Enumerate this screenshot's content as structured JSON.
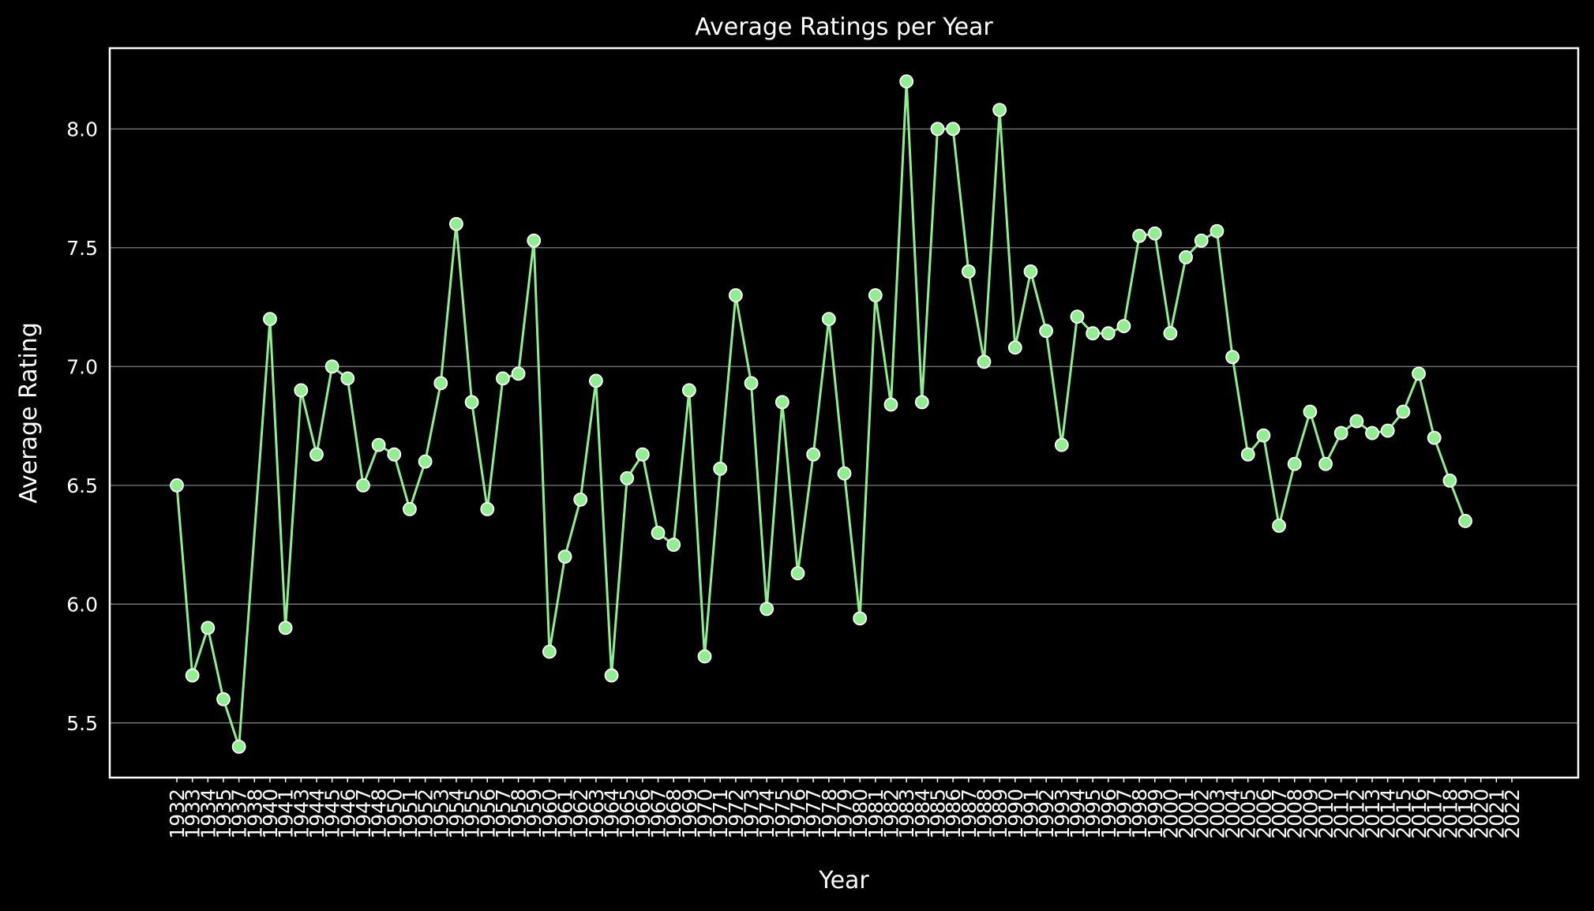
{
  "chart_data": {
    "type": "line",
    "title": "Average Ratings per Year",
    "xlabel": "Year",
    "ylabel": "Average Rating",
    "ylim": [
      5.27,
      8.34
    ],
    "yticks": [
      5.5,
      6.0,
      6.5,
      7.0,
      7.5,
      8.0
    ],
    "grid": "horizontal",
    "colors": {
      "background": "#000000",
      "line": "#90ee90",
      "marker_edge": "#ffffff",
      "text": "#ffffff",
      "grid": "#8a8a8a"
    },
    "x": [
      "1932",
      "1933",
      "1934",
      "1935",
      "1937",
      "1938",
      "1940",
      "1941",
      "1943",
      "1944",
      "1945",
      "1946",
      "1947",
      "1948",
      "1950",
      "1951",
      "1952",
      "1953",
      "1954",
      "1955",
      "1956",
      "1957",
      "1958",
      "1959",
      "1960",
      "1961",
      "1962",
      "1963",
      "1964",
      "1965",
      "1966",
      "1967",
      "1968",
      "1969",
      "1970",
      "1971",
      "1972",
      "1973",
      "1974",
      "1975",
      "1976",
      "1977",
      "1978",
      "1979",
      "1980",
      "1981",
      "1982",
      "1983",
      "1984",
      "1985",
      "1986",
      "1987",
      "1988",
      "1989",
      "1990",
      "1991",
      "1992",
      "1993",
      "1994",
      "1995",
      "1996",
      "1997",
      "1998",
      "1999",
      "2000",
      "2001",
      "2002",
      "2003",
      "2004",
      "2005",
      "2006",
      "2007",
      "2008",
      "2009",
      "2010",
      "2011",
      "2012",
      "2013",
      "2014",
      "2015",
      "2016",
      "2017",
      "2018",
      "2019",
      "2020",
      "2021",
      "2022"
    ],
    "series": [
      {
        "values": [
          6.5,
          5.7,
          5.9,
          5.6,
          5.4,
          null,
          7.2,
          5.9,
          6.9,
          6.63,
          7.0,
          6.95,
          6.5,
          6.67,
          6.63,
          6.4,
          6.6,
          6.93,
          7.6,
          6.85,
          6.4,
          6.95,
          6.97,
          7.53,
          5.8,
          6.2,
          6.44,
          6.94,
          5.7,
          6.53,
          6.63,
          6.3,
          6.25,
          6.9,
          5.78,
          6.57,
          7.3,
          6.93,
          5.98,
          6.85,
          6.13,
          6.63,
          7.2,
          6.55,
          5.94,
          7.3,
          6.84,
          8.2,
          6.85,
          8.0,
          8.0,
          7.4,
          7.02,
          8.08,
          7.08,
          7.4,
          7.15,
          6.67,
          7.21,
          7.14,
          7.14,
          7.17,
          7.55,
          7.56,
          7.14,
          7.46,
          7.53,
          7.57,
          7.04,
          6.63,
          6.71,
          6.33,
          6.59,
          6.81,
          6.59,
          6.72,
          6.77,
          6.72,
          6.73,
          6.81,
          6.97,
          6.7,
          6.52,
          6.35,
          null,
          null,
          null
        ]
      }
    ]
  }
}
